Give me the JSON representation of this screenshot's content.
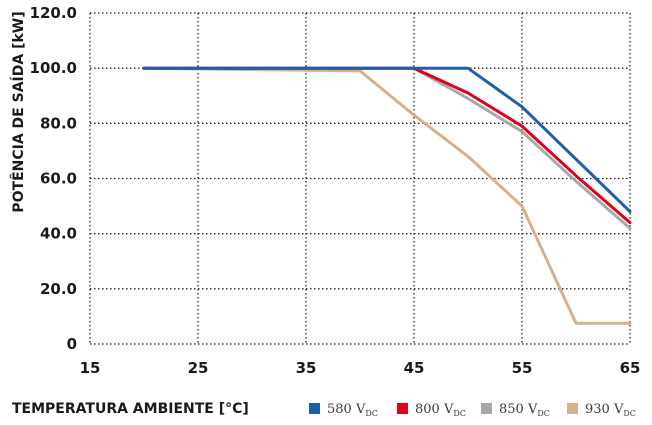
{
  "chart_data": {
    "type": "line",
    "xlabel": "TEMPERATURA AMBIENTE [°C]",
    "ylabel": "POTÊNCIA DE SAÍDA [kW]",
    "xlim": [
      15,
      65
    ],
    "ylim": [
      0,
      120
    ],
    "x_ticks": [
      "15",
      "25",
      "35",
      "45",
      "55",
      "65"
    ],
    "y_ticks": [
      "0",
      "20.0",
      "40.0",
      "60.0",
      "80.0",
      "100.0",
      "120.0"
    ],
    "grid": true,
    "legend_position": "bottom-right",
    "series": [
      {
        "name": "580 V",
        "name_sub": "DC",
        "color": "#1f5fa8",
        "points": [
          [
            20,
            100
          ],
          [
            50,
            100
          ],
          [
            55,
            86
          ],
          [
            60,
            67
          ],
          [
            65,
            48
          ]
        ]
      },
      {
        "name": "800 V",
        "name_sub": "DC",
        "color": "#e0001a",
        "points": [
          [
            20,
            100
          ],
          [
            45,
            100
          ],
          [
            50,
            91
          ],
          [
            55,
            79
          ],
          [
            60,
            61
          ],
          [
            65,
            44
          ]
        ]
      },
      {
        "name": "850 V",
        "name_sub": "DC",
        "color": "#a8a8a8",
        "points": [
          [
            20,
            100
          ],
          [
            45,
            100
          ],
          [
            50,
            89
          ],
          [
            55,
            77
          ],
          [
            60,
            59
          ],
          [
            65,
            42
          ]
        ]
      },
      {
        "name": "930 V",
        "name_sub": "DC",
        "color": "#d8b088",
        "points": [
          [
            20,
            100
          ],
          [
            40,
            99
          ],
          [
            45,
            83
          ],
          [
            50,
            68
          ],
          [
            55,
            50
          ],
          [
            60,
            7.5
          ],
          [
            65,
            7.5
          ]
        ]
      }
    ]
  }
}
